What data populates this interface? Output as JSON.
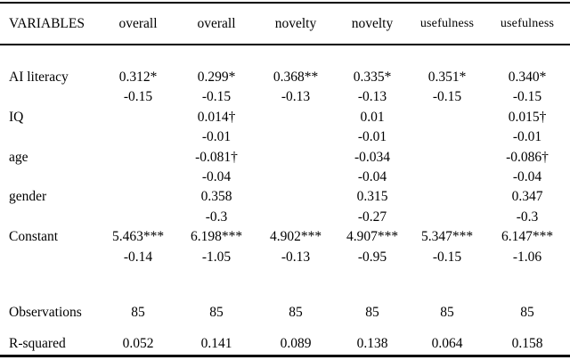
{
  "table": {
    "columns": [
      {
        "label": "VARIABLES"
      },
      {
        "label": "overall"
      },
      {
        "label": "overall"
      },
      {
        "label": "novelty"
      },
      {
        "label": "novelty"
      },
      {
        "label": "usefulness"
      },
      {
        "label": "usefulness"
      }
    ],
    "rows": [
      {
        "kind": "coefficient",
        "label": "AI literacy",
        "cells": [
          "0.312*",
          "0.299*",
          "0.368**",
          "0.335*",
          "0.351*",
          "0.340*"
        ]
      },
      {
        "kind": "stderr",
        "label": "",
        "cells": [
          "-0.15",
          "-0.15",
          "-0.13",
          "-0.13",
          "-0.15",
          "-0.15"
        ]
      },
      {
        "kind": "coefficient",
        "label": "IQ",
        "cells": [
          "",
          "0.014†",
          "",
          "0.01",
          "",
          "0.015†"
        ]
      },
      {
        "kind": "stderr",
        "label": "",
        "cells": [
          "",
          "-0.01",
          "",
          "-0.01",
          "",
          "-0.01"
        ]
      },
      {
        "kind": "coefficient",
        "label": "age",
        "cells": [
          "",
          "-0.081†",
          "",
          "-0.034",
          "",
          "-0.086†"
        ]
      },
      {
        "kind": "stderr",
        "label": "",
        "cells": [
          "",
          "-0.04",
          "",
          "-0.04",
          "",
          "-0.04"
        ]
      },
      {
        "kind": "coefficient",
        "label": "gender",
        "cells": [
          "",
          "0.358",
          "",
          "0.315",
          "",
          "0.347"
        ]
      },
      {
        "kind": "stderr",
        "label": "",
        "cells": [
          "",
          "-0.3",
          "",
          "-0.27",
          "",
          "-0.3"
        ]
      },
      {
        "kind": "coefficient",
        "label": "Constant",
        "cells": [
          "5.463***",
          "6.198***",
          "4.902***",
          "4.907***",
          "5.347***",
          "6.147***"
        ]
      },
      {
        "kind": "stderr",
        "label": "",
        "cells": [
          "-0.14",
          "-1.05",
          "-0.13",
          "-0.95",
          "-0.15",
          "-1.06"
        ]
      },
      {
        "kind": "statistic",
        "label": "Observations",
        "cells": [
          "85",
          "85",
          "85",
          "85",
          "85",
          "85"
        ]
      },
      {
        "kind": "statistic",
        "label": "R-squared",
        "cells": [
          "0.052",
          "0.141",
          "0.089",
          "0.138",
          "0.064",
          "0.158"
        ]
      }
    ],
    "text_color": "#000000",
    "background_color": "#ffffff",
    "rule_color": "#000000"
  }
}
